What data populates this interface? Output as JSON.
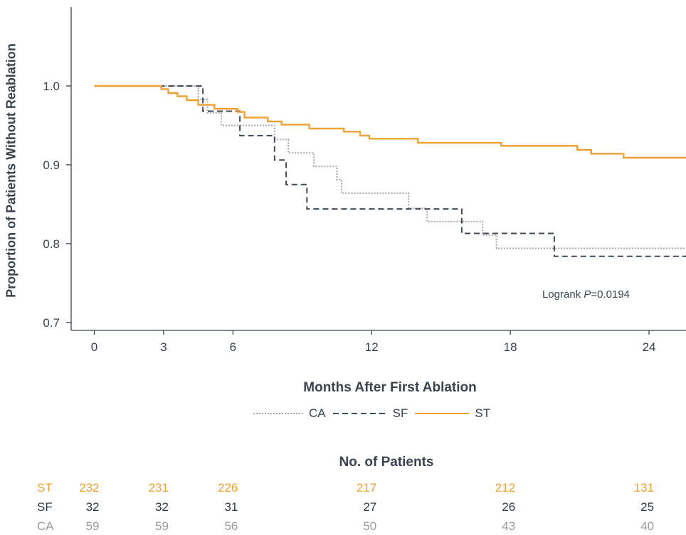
{
  "chart_data": {
    "type": "line",
    "title": "",
    "xlabel": "Months After First Ablation",
    "ylabel": "Proportion of Patients Without Reablation",
    "xlim": [
      -1,
      25.6
    ],
    "ylim": [
      0.69,
      1.1
    ],
    "x_ticks": [
      0,
      3,
      6,
      12,
      18,
      24
    ],
    "y_ticks": [
      0.7,
      0.8,
      0.9,
      1.0
    ],
    "y_tick_labels": [
      "0.7",
      "0.8",
      "0.9",
      "1.0"
    ],
    "grid": false,
    "legend_position": "bottom",
    "annotation": {
      "text_prefix": "Logrank ",
      "text_italic": "P",
      "text_suffix": "=0.0194"
    },
    "series": [
      {
        "name": "CA",
        "color": "#a6a6a6",
        "style": "dotted",
        "points": [
          [
            0,
            1.0
          ],
          [
            4.5,
            1.0
          ],
          [
            4.5,
            0.983
          ],
          [
            4.9,
            0.983
          ],
          [
            4.9,
            0.966
          ],
          [
            5.5,
            0.966
          ],
          [
            5.5,
            0.95
          ],
          [
            7.8,
            0.95
          ],
          [
            7.8,
            0.932
          ],
          [
            8.4,
            0.932
          ],
          [
            8.4,
            0.915
          ],
          [
            9.5,
            0.915
          ],
          [
            9.5,
            0.898
          ],
          [
            10.5,
            0.898
          ],
          [
            10.5,
            0.881
          ],
          [
            10.7,
            0.881
          ],
          [
            10.7,
            0.864
          ],
          [
            13.6,
            0.864
          ],
          [
            13.6,
            0.845
          ],
          [
            14.4,
            0.845
          ],
          [
            14.4,
            0.828
          ],
          [
            16.8,
            0.828
          ],
          [
            16.8,
            0.811
          ],
          [
            17.4,
            0.811
          ],
          [
            17.4,
            0.794
          ],
          [
            25.6,
            0.794
          ]
        ]
      },
      {
        "name": "SF",
        "color": "#3f4a57",
        "style": "dashed",
        "points": [
          [
            0,
            1.0
          ],
          [
            4.7,
            1.0
          ],
          [
            4.7,
            0.968
          ],
          [
            6.3,
            0.968
          ],
          [
            6.3,
            0.937
          ],
          [
            7.8,
            0.937
          ],
          [
            7.8,
            0.906
          ],
          [
            8.3,
            0.906
          ],
          [
            8.3,
            0.875
          ],
          [
            9.2,
            0.875
          ],
          [
            9.2,
            0.844
          ],
          [
            15.9,
            0.844
          ],
          [
            15.9,
            0.813
          ],
          [
            19.9,
            0.813
          ],
          [
            19.9,
            0.784
          ],
          [
            25.6,
            0.784
          ]
        ]
      },
      {
        "name": "ST",
        "color": "#f0a030",
        "style": "solid",
        "points": [
          [
            0,
            1.0
          ],
          [
            2.9,
            1.0
          ],
          [
            2.9,
            0.996
          ],
          [
            3.2,
            0.996
          ],
          [
            3.2,
            0.991
          ],
          [
            3.6,
            0.991
          ],
          [
            3.6,
            0.987
          ],
          [
            4.0,
            0.987
          ],
          [
            4.0,
            0.982
          ],
          [
            4.5,
            0.982
          ],
          [
            4.5,
            0.976
          ],
          [
            5.2,
            0.976
          ],
          [
            5.2,
            0.971
          ],
          [
            6.2,
            0.971
          ],
          [
            6.2,
            0.967
          ],
          [
            6.5,
            0.967
          ],
          [
            6.5,
            0.96
          ],
          [
            7.5,
            0.96
          ],
          [
            7.5,
            0.955
          ],
          [
            8.1,
            0.955
          ],
          [
            8.1,
            0.951
          ],
          [
            9.3,
            0.951
          ],
          [
            9.3,
            0.946
          ],
          [
            10.8,
            0.946
          ],
          [
            10.8,
            0.942
          ],
          [
            11.5,
            0.942
          ],
          [
            11.5,
            0.937
          ],
          [
            11.9,
            0.937
          ],
          [
            11.9,
            0.933
          ],
          [
            14.0,
            0.933
          ],
          [
            14.0,
            0.928
          ],
          [
            17.6,
            0.928
          ],
          [
            17.6,
            0.924
          ],
          [
            20.9,
            0.924
          ],
          [
            20.9,
            0.919
          ],
          [
            21.5,
            0.919
          ],
          [
            21.5,
            0.914
          ],
          [
            22.9,
            0.914
          ],
          [
            22.9,
            0.909
          ],
          [
            25.6,
            0.909
          ]
        ]
      }
    ],
    "risk_table": {
      "title": "No. of Patients",
      "x": [
        0,
        3,
        6,
        12,
        18,
        24
      ],
      "rows": [
        {
          "label": "ST",
          "color": "#f0a030",
          "values": [
            "232",
            "231",
            "226",
            "217",
            "212",
            "131"
          ]
        },
        {
          "label": "SF",
          "color": "#2f3a47",
          "values": [
            "32",
            "32",
            "31",
            "27",
            "26",
            "25"
          ]
        },
        {
          "label": "CA",
          "color": "#9a9a9a",
          "values": [
            "59",
            "59",
            "56",
            "50",
            "43",
            "40"
          ]
        }
      ]
    }
  }
}
